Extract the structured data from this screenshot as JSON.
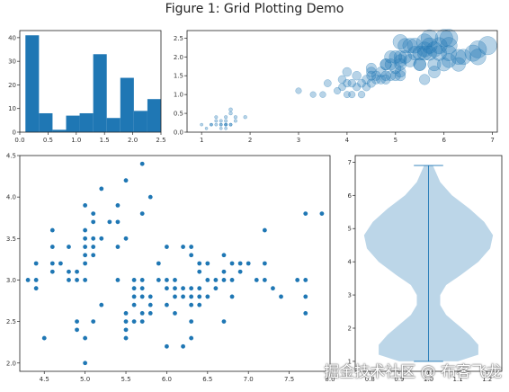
{
  "figure": {
    "title": "Figure 1: Grid Plotting Demo",
    "watermark": "掘金技术社区 @ 布客飞龙"
  },
  "colors": {
    "primary": "#1f77b4",
    "violin_fill": "#bcd6e8",
    "violin_line": "#1f77b4"
  },
  "chart_data": [
    {
      "type": "bar",
      "kind": "histogram",
      "bin_edges": [
        0.1,
        0.34,
        0.58,
        0.82,
        1.06,
        1.3,
        1.54,
        1.78,
        2.02,
        2.26,
        2.5
      ],
      "values": [
        41,
        8,
        1,
        7,
        8,
        33,
        6,
        23,
        9,
        14
      ],
      "xlim": [
        0,
        2.5
      ],
      "ylim": [
        0,
        43
      ],
      "xticks": [
        0.0,
        0.5,
        1.0,
        1.5,
        2.0,
        2.5
      ],
      "xticklabels": [
        "0.0",
        "0.5",
        "1.0",
        "1.5",
        "2.0",
        "2.5"
      ],
      "yticks": [
        0,
        10,
        20,
        30,
        40
      ],
      "yticklabels": [
        "0",
        "10",
        "20",
        "30",
        "40"
      ]
    },
    {
      "type": "scatter",
      "kind": "bubble",
      "xlim": [
        0.7,
        7.1
      ],
      "ylim": [
        0,
        2.7
      ],
      "xticks": [
        1,
        2,
        3,
        4,
        5,
        6,
        7
      ],
      "xticklabels": [
        "1",
        "2",
        "3",
        "4",
        "5",
        "6",
        "7"
      ],
      "yticks": [
        0.0,
        0.5,
        1.0,
        1.5,
        2.0,
        2.5
      ],
      "yticklabels": [
        "0.0",
        "0.5",
        "1.0",
        "1.5",
        "2.0",
        "2.5"
      ],
      "points": [
        [
          1.4,
          0.2
        ],
        [
          1.3,
          0.2
        ],
        [
          1.5,
          0.2
        ],
        [
          1.4,
          0.3
        ],
        [
          1.5,
          0.1
        ],
        [
          1.6,
          0.2
        ],
        [
          1.1,
          0.1
        ],
        [
          1.2,
          0.2
        ],
        [
          1.7,
          0.4
        ],
        [
          1.5,
          0.4
        ],
        [
          1.3,
          0.4
        ],
        [
          1.6,
          0.5
        ],
        [
          1.4,
          0.2
        ],
        [
          1.5,
          0.2
        ],
        [
          1.9,
          0.4
        ],
        [
          1.6,
          0.6
        ],
        [
          1.0,
          0.2
        ],
        [
          1.7,
          0.3
        ],
        [
          1.5,
          0.3
        ],
        [
          1.4,
          0.1
        ],
        [
          1.2,
          0.2
        ],
        [
          1.6,
          0.2
        ],
        [
          1.3,
          0.3
        ],
        [
          1.5,
          0.2
        ],
        [
          3.0,
          1.1
        ],
        [
          3.5,
          1.0
        ],
        [
          3.3,
          1.0
        ],
        [
          3.8,
          1.1
        ],
        [
          3.9,
          1.2
        ],
        [
          3.6,
          1.3
        ],
        [
          3.9,
          1.4
        ],
        [
          4.0,
          1.0
        ],
        [
          4.0,
          1.3
        ],
        [
          4.2,
          1.2
        ],
        [
          4.1,
          1.0
        ],
        [
          4.3,
          1.3
        ],
        [
          4.4,
          1.4
        ],
        [
          4.5,
          1.5
        ],
        [
          4.5,
          1.3
        ],
        [
          4.6,
          1.4
        ],
        [
          4.7,
          1.4
        ],
        [
          4.7,
          1.6
        ],
        [
          4.8,
          1.8
        ],
        [
          4.9,
          1.5
        ],
        [
          4.4,
          1.2
        ],
        [
          4.1,
          1.3
        ],
        [
          4.5,
          1.6
        ],
        [
          5.0,
          1.7
        ],
        [
          4.2,
          1.5
        ],
        [
          4.6,
          1.5
        ],
        [
          4.8,
          1.4
        ],
        [
          5.1,
          1.6
        ],
        [
          4.0,
          1.6
        ],
        [
          4.9,
          1.8
        ],
        [
          4.8,
          1.5
        ],
        [
          4.3,
          1.0
        ],
        [
          5.1,
          1.9
        ],
        [
          5.6,
          2.4
        ],
        [
          5.5,
          1.8
        ],
        [
          5.1,
          2.0
        ],
        [
          5.8,
          1.8
        ],
        [
          6.0,
          2.5
        ],
        [
          5.6,
          2.1
        ],
        [
          5.8,
          2.2
        ],
        [
          6.6,
          2.1
        ],
        [
          6.1,
          2.3
        ],
        [
          5.3,
          1.9
        ],
        [
          5.4,
          2.1
        ],
        [
          5.0,
          2.0
        ],
        [
          5.5,
          2.1
        ],
        [
          5.7,
          2.3
        ],
        [
          5.9,
          2.3
        ],
        [
          6.7,
          2.2
        ],
        [
          6.9,
          2.3
        ],
        [
          5.2,
          2.3
        ],
        [
          5.7,
          2.5
        ],
        [
          6.3,
          1.8
        ],
        [
          6.7,
          2.0
        ],
        [
          6.4,
          2.0
        ],
        [
          6.1,
          1.9
        ],
        [
          5.6,
          1.4
        ],
        [
          6.1,
          2.5
        ],
        [
          5.1,
          1.5
        ],
        [
          4.9,
          2.0
        ],
        [
          5.9,
          2.1
        ],
        [
          5.4,
          2.3
        ],
        [
          5.1,
          2.4
        ],
        [
          5.7,
          2.1
        ],
        [
          5.2,
          2.0
        ],
        [
          5.0,
          1.5
        ],
        [
          5.3,
          2.3
        ],
        [
          5.5,
          1.8
        ],
        [
          6.0,
          1.8
        ],
        [
          5.1,
          1.8
        ],
        [
          4.8,
          1.8
        ],
        [
          6.1,
          2.1
        ],
        [
          5.6,
          2.2
        ],
        [
          4.5,
          1.7
        ],
        [
          5.8,
          1.6
        ],
        [
          6.3,
          2.0
        ]
      ]
    },
    {
      "type": "scatter",
      "xlim": [
        4.2,
        8.0
      ],
      "ylim": [
        1.9,
        4.5
      ],
      "xticks": [
        4.5,
        5.0,
        5.5,
        6.0,
        6.5,
        7.0,
        7.5,
        8.0
      ],
      "xticklabels": [
        "4.5",
        "5.0",
        "5.5",
        "6.0",
        "6.5",
        "7.0",
        "7.5",
        "8.0"
      ],
      "yticks": [
        2.0,
        2.5,
        3.0,
        3.5,
        4.0,
        4.5
      ],
      "yticklabels": [
        "2.0",
        "2.5",
        "3.0",
        "3.5",
        "4.0",
        "4.5"
      ],
      "points": [
        [
          4.3,
          3.0
        ],
        [
          4.4,
          3.0
        ],
        [
          4.4,
          2.9
        ],
        [
          4.4,
          3.2
        ],
        [
          4.5,
          2.3
        ],
        [
          4.6,
          3.1
        ],
        [
          4.6,
          3.4
        ],
        [
          4.6,
          3.6
        ],
        [
          4.6,
          3.2
        ],
        [
          4.7,
          3.2
        ],
        [
          4.8,
          3.4
        ],
        [
          4.8,
          3.0
        ],
        [
          4.8,
          3.1
        ],
        [
          4.9,
          3.0
        ],
        [
          4.9,
          3.1
        ],
        [
          4.9,
          2.5
        ],
        [
          4.9,
          2.4
        ],
        [
          5.0,
          3.6
        ],
        [
          5.0,
          3.4
        ],
        [
          5.0,
          3.0
        ],
        [
          5.0,
          3.5
        ],
        [
          5.0,
          3.3
        ],
        [
          5.0,
          2.0
        ],
        [
          5.0,
          2.3
        ],
        [
          5.0,
          3.2
        ],
        [
          5.0,
          3.9
        ],
        [
          5.1,
          3.5
        ],
        [
          5.1,
          3.8
        ],
        [
          5.1,
          3.7
        ],
        [
          5.1,
          3.3
        ],
        [
          5.1,
          2.5
        ],
        [
          5.1,
          3.4
        ],
        [
          5.2,
          3.5
        ],
        [
          5.2,
          4.1
        ],
        [
          5.2,
          2.7
        ],
        [
          5.3,
          3.7
        ],
        [
          5.4,
          3.9
        ],
        [
          5.4,
          3.7
        ],
        [
          5.4,
          3.4
        ],
        [
          5.4,
          3.0
        ],
        [
          5.5,
          4.2
        ],
        [
          5.5,
          3.5
        ],
        [
          5.5,
          2.3
        ],
        [
          5.5,
          2.4
        ],
        [
          5.5,
          2.5
        ],
        [
          5.5,
          2.6
        ],
        [
          5.6,
          2.9
        ],
        [
          5.6,
          3.0
        ],
        [
          5.6,
          2.5
        ],
        [
          5.6,
          2.7
        ],
        [
          5.6,
          2.8
        ],
        [
          5.7,
          4.4
        ],
        [
          5.7,
          3.8
        ],
        [
          5.7,
          2.8
        ],
        [
          5.7,
          2.6
        ],
        [
          5.7,
          3.0
        ],
        [
          5.7,
          2.9
        ],
        [
          5.7,
          2.5
        ],
        [
          5.8,
          4.0
        ],
        [
          5.8,
          2.7
        ],
        [
          5.8,
          2.8
        ],
        [
          5.8,
          2.6
        ],
        [
          5.9,
          3.0
        ],
        [
          5.9,
          3.2
        ],
        [
          6.0,
          2.2
        ],
        [
          6.0,
          2.9
        ],
        [
          6.0,
          2.7
        ],
        [
          6.0,
          3.4
        ],
        [
          6.0,
          3.0
        ],
        [
          6.1,
          2.8
        ],
        [
          6.1,
          2.9
        ],
        [
          6.1,
          3.0
        ],
        [
          6.1,
          2.6
        ],
        [
          6.2,
          2.2
        ],
        [
          6.2,
          2.9
        ],
        [
          6.2,
          3.4
        ],
        [
          6.2,
          2.8
        ],
        [
          6.3,
          3.3
        ],
        [
          6.3,
          2.5
        ],
        [
          6.3,
          2.3
        ],
        [
          6.3,
          2.8
        ],
        [
          6.3,
          2.9
        ],
        [
          6.3,
          2.7
        ],
        [
          6.3,
          3.4
        ],
        [
          6.4,
          3.2
        ],
        [
          6.4,
          2.9
        ],
        [
          6.4,
          2.7
        ],
        [
          6.4,
          2.8
        ],
        [
          6.4,
          3.1
        ],
        [
          6.5,
          2.8
        ],
        [
          6.5,
          3.0
        ],
        [
          6.5,
          3.2
        ],
        [
          6.6,
          2.9
        ],
        [
          6.6,
          3.0
        ],
        [
          6.7,
          3.1
        ],
        [
          6.7,
          3.0
        ],
        [
          6.7,
          2.5
        ],
        [
          6.7,
          3.3
        ],
        [
          6.8,
          2.8
        ],
        [
          6.8,
          3.0
        ],
        [
          6.8,
          3.2
        ],
        [
          6.9,
          3.1
        ],
        [
          6.9,
          3.2
        ],
        [
          7.0,
          3.2
        ],
        [
          7.1,
          3.0
        ],
        [
          7.2,
          3.6
        ],
        [
          7.2,
          3.2
        ],
        [
          7.2,
          3.0
        ],
        [
          7.3,
          2.9
        ],
        [
          7.4,
          2.8
        ],
        [
          7.6,
          3.0
        ],
        [
          7.7,
          3.8
        ],
        [
          7.7,
          2.6
        ],
        [
          7.7,
          2.8
        ],
        [
          7.7,
          3.0
        ],
        [
          7.9,
          3.8
        ]
      ]
    },
    {
      "type": "violin",
      "xlim": [
        0.75,
        1.25
      ],
      "ylim": [
        0.7,
        7.2
      ],
      "xticks": [
        0.8,
        0.9,
        1.0,
        1.1,
        1.2
      ],
      "xticklabels": [
        "0.8",
        "0.9",
        "1.0",
        "1.1",
        "1.2"
      ],
      "yticks": [
        1,
        2,
        3,
        4,
        5,
        6,
        7
      ],
      "yticklabels": [
        "1",
        "2",
        "3",
        "4",
        "5",
        "6",
        "7"
      ],
      "center": 1.0,
      "min": 1.0,
      "max": 6.9,
      "profile": [
        [
          1.0,
          0.1
        ],
        [
          1.2,
          0.17
        ],
        [
          1.5,
          0.17
        ],
        [
          1.8,
          0.14
        ],
        [
          2.1,
          0.1
        ],
        [
          2.4,
          0.06
        ],
        [
          2.7,
          0.04
        ],
        [
          3.0,
          0.04
        ],
        [
          3.3,
          0.06
        ],
        [
          3.6,
          0.11
        ],
        [
          4.0,
          0.17
        ],
        [
          4.4,
          0.21
        ],
        [
          4.8,
          0.22
        ],
        [
          5.2,
          0.19
        ],
        [
          5.6,
          0.14
        ],
        [
          6.0,
          0.08
        ],
        [
          6.4,
          0.04
        ],
        [
          6.8,
          0.02
        ],
        [
          6.9,
          0.015
        ]
      ]
    }
  ]
}
